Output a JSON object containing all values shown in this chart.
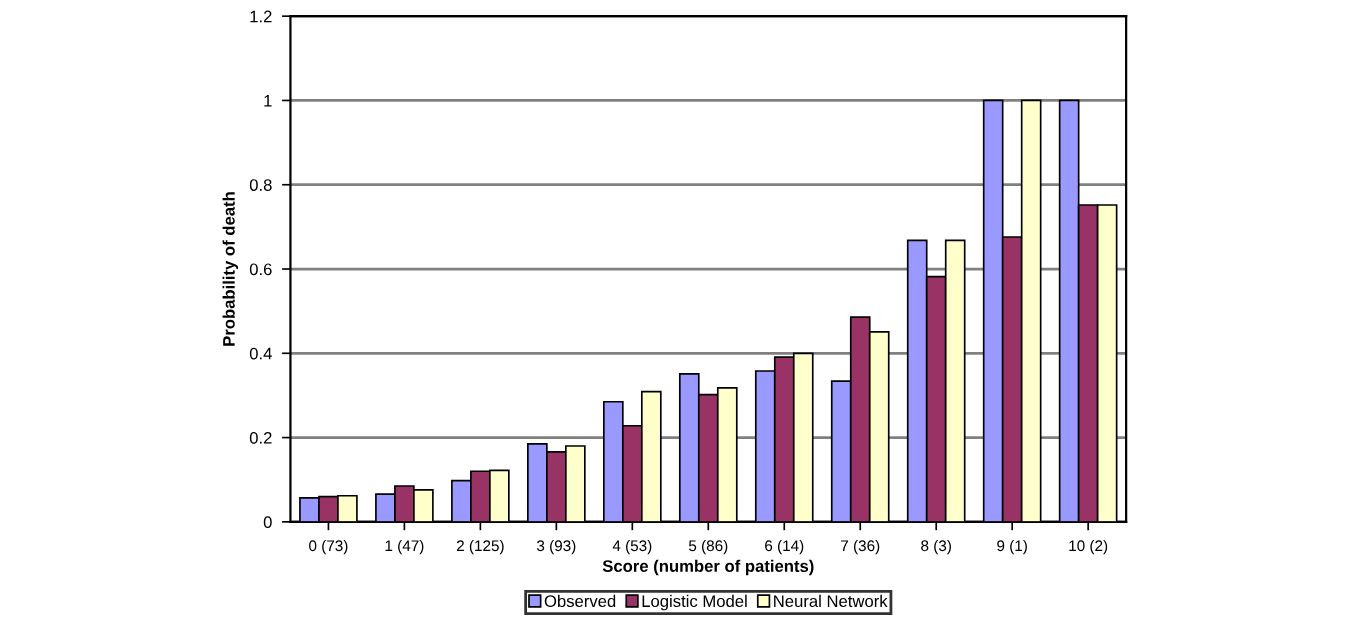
{
  "chart_data": {
    "type": "bar",
    "xlabel": "Score (number of patients)",
    "ylabel": "Probability of death",
    "categories": [
      "0 (73)",
      "1 (47)",
      "2 (125)",
      "3 (93)",
      "4 (53)",
      "5 (86)",
      "6 (14)",
      "7 (36)",
      "8 (3)",
      "9 (1)",
      "10 (2)"
    ],
    "series": [
      {
        "name": "Observed",
        "color": "#9999ff",
        "values": [
          0.057,
          0.066,
          0.098,
          0.185,
          0.285,
          0.351,
          0.358,
          0.334,
          0.668,
          1,
          1
        ]
      },
      {
        "name": "Logistic Model",
        "color": "#993366",
        "values": [
          0.06,
          0.085,
          0.12,
          0.166,
          0.228,
          0.302,
          0.391,
          0.486,
          0.582,
          0.676,
          0.752
        ]
      },
      {
        "name": "Neural Network",
        "color": "#ffffcc",
        "values": [
          0.062,
          0.076,
          0.122,
          0.18,
          0.309,
          0.318,
          0.4,
          0.451,
          0.668,
          1,
          0.752
        ]
      }
    ],
    "ylim": [
      0,
      1.2
    ],
    "yticks": [
      0,
      0.2,
      0.4,
      0.6,
      0.8,
      1,
      1.2
    ],
    "grid": "y",
    "legend": "bottom"
  }
}
